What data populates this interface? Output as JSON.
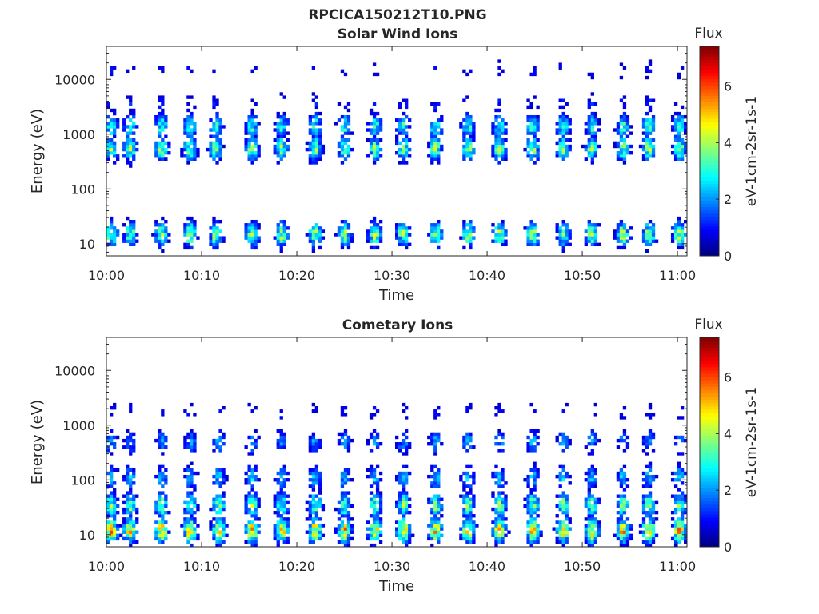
{
  "figure_title": "RPCICA150212T10.PNG",
  "colors": {
    "axis": "#262626",
    "background": "#ffffff"
  },
  "chart_data": [
    {
      "type": "heatmap",
      "title": "Solar Wind Ions",
      "xlabel": "Time",
      "ylabel": "Energy (eV)",
      "x_ticks": [
        "10:00",
        "10:10",
        "10:20",
        "10:30",
        "10:40",
        "10:50",
        "11:00"
      ],
      "x_tick_minutes": [
        0,
        10,
        20,
        30,
        40,
        50,
        60
      ],
      "xlim_minutes": [
        0,
        61
      ],
      "y_scale": "log",
      "y_ticks": [
        "10",
        "100",
        "1000",
        "10000"
      ],
      "y_tick_values": [
        10,
        100,
        1000,
        10000
      ],
      "ylim": [
        6,
        40000
      ],
      "colorbar": {
        "title": "Flux",
        "label": "eV-1cm-2sr-1s-1",
        "ticks": [
          "0",
          "2",
          "4",
          "6"
        ],
        "tick_values": [
          0,
          2,
          4,
          6
        ],
        "range": [
          0,
          7.4
        ],
        "colormap": "jet"
      },
      "bursts_minutes": [
        0.5,
        2.5,
        5.8,
        8.8,
        11.5,
        15.3,
        18.4,
        21.9,
        25.0,
        28.2,
        31.2,
        34.6,
        38.0,
        41.3,
        44.8,
        48.0,
        51.0,
        54.3,
        57.0,
        60.2
      ],
      "bands": [
        {
          "center_ev": 15,
          "flux": 4.4
        },
        {
          "center_ev": 550,
          "flux": 4.2
        },
        {
          "center_ev": 1400,
          "flux": 3.4
        },
        {
          "center_ev": 3500,
          "flux": 1.2
        },
        {
          "center_ev": 15000,
          "flux": 0.9
        }
      ]
    },
    {
      "type": "heatmap",
      "title": "Cometary Ions",
      "xlabel": "Time",
      "ylabel": "Energy (eV)",
      "x_ticks": [
        "10:00",
        "10:10",
        "10:20",
        "10:30",
        "10:40",
        "10:50",
        "11:00"
      ],
      "x_tick_minutes": [
        0,
        10,
        20,
        30,
        40,
        50,
        60
      ],
      "xlim_minutes": [
        0,
        61
      ],
      "y_scale": "log",
      "y_ticks": [
        "10",
        "100",
        "1000",
        "10000"
      ],
      "y_tick_values": [
        10,
        100,
        1000,
        10000
      ],
      "ylim": [
        6,
        40000
      ],
      "colorbar": {
        "title": "Flux",
        "label": "eV-1cm-2sr-1s-1",
        "ticks": [
          "0",
          "2",
          "4",
          "6"
        ],
        "tick_values": [
          0,
          2,
          4,
          6
        ],
        "range": [
          0,
          7.4
        ],
        "colormap": "jet"
      },
      "bursts_minutes": [
        0.5,
        2.5,
        5.8,
        8.8,
        11.8,
        15.3,
        18.4,
        21.9,
        25.0,
        28.2,
        31.2,
        34.6,
        38.0,
        41.3,
        44.8,
        48.0,
        51.0,
        54.3,
        57.0,
        60.2
      ],
      "bands": [
        {
          "center_ev": 12,
          "flux": 5.6
        },
        {
          "center_ev": 35,
          "flux": 4.0
        },
        {
          "center_ev": 110,
          "flux": 2.6
        },
        {
          "center_ev": 500,
          "flux": 2.3
        },
        {
          "center_ev": 1800,
          "flux": 1.0
        }
      ]
    }
  ]
}
